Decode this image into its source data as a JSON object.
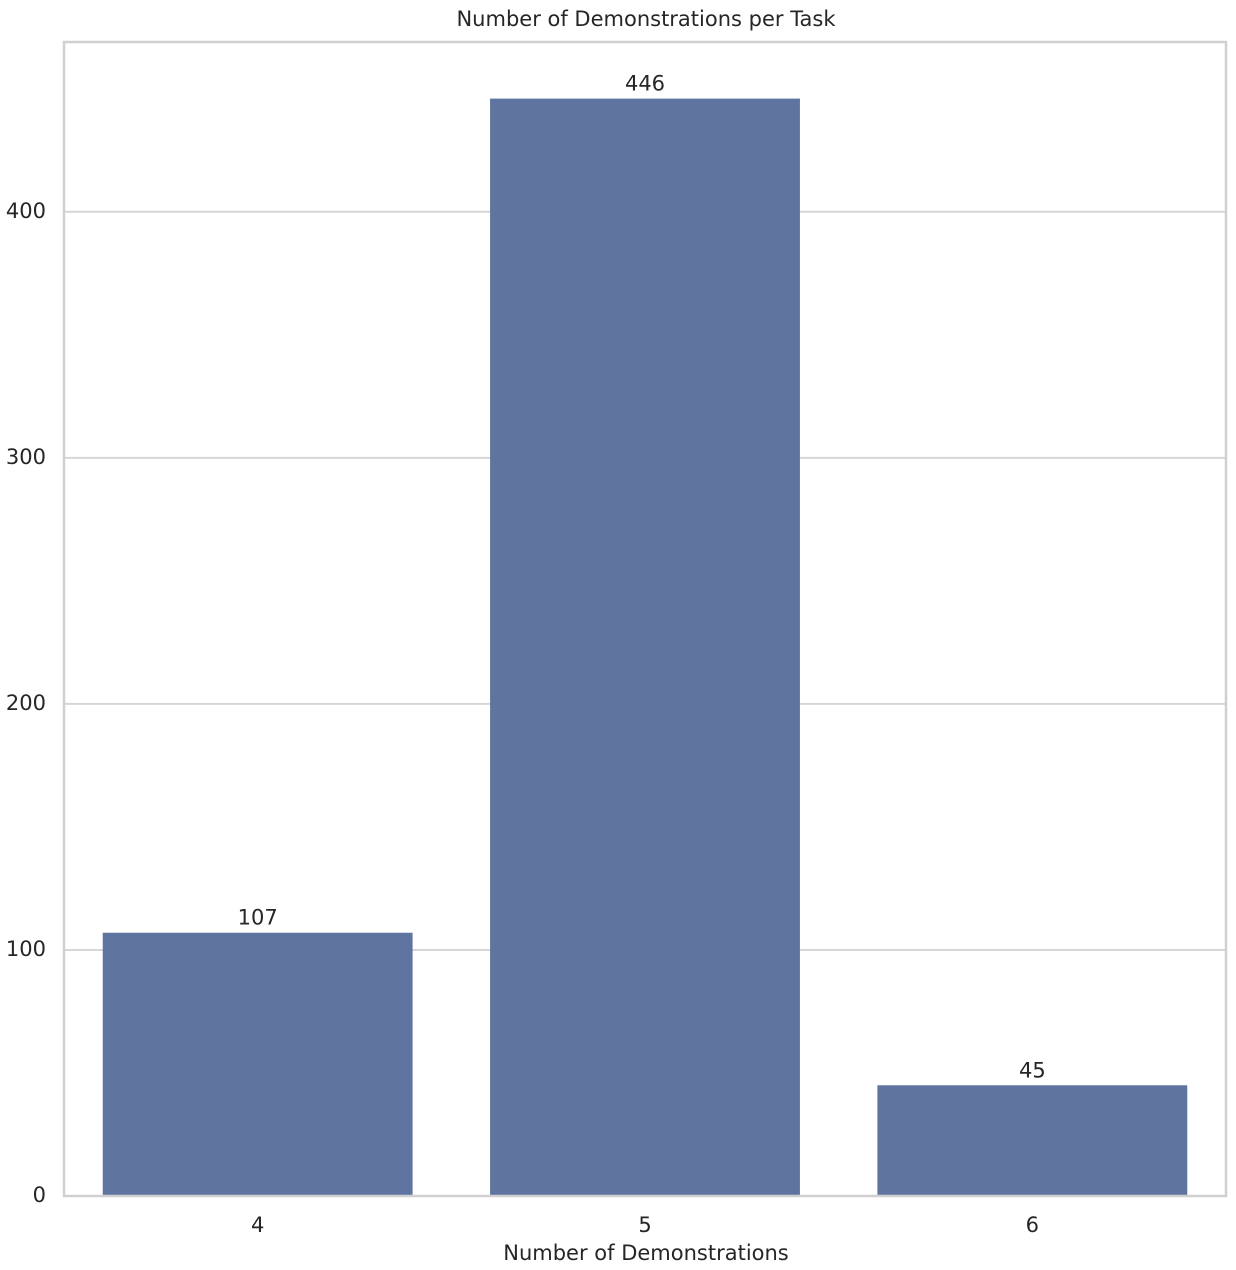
{
  "chart_data": {
    "type": "bar",
    "title": "Number of Demonstrations per Task",
    "x_label": "Number of Demonstrations",
    "categories": [
      "4",
      "5",
      "6"
    ],
    "values": [
      107,
      446,
      45
    ],
    "color": "#6074a0",
    "ylim": [
      0,
      469
    ],
    "yticks": [
      0,
      100,
      200,
      300,
      400
    ],
    "grid": true,
    "data_labels": true
  }
}
